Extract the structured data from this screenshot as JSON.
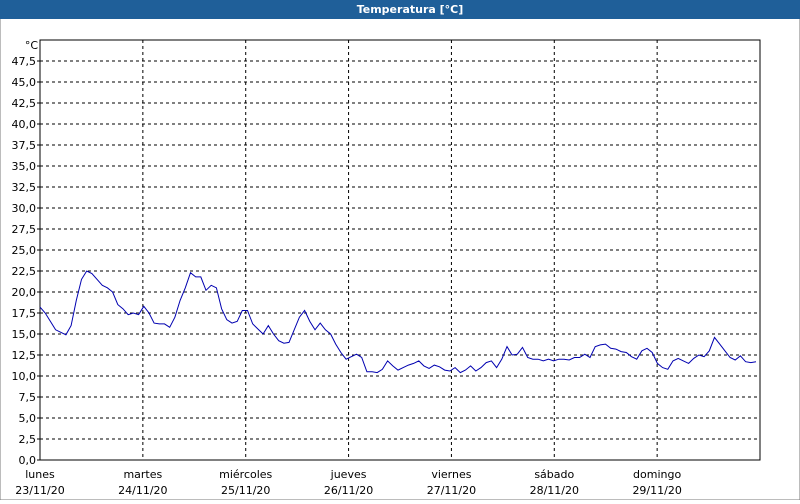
{
  "chart_data": {
    "type": "line",
    "title": "Temperatura [°C]",
    "unit": "°C",
    "color": "#0000b0",
    "grid": true,
    "ylim": [
      0,
      50
    ],
    "yticks": [
      {
        "value": 0,
        "label": "0,0"
      },
      {
        "value": 2.5,
        "label": "2,5"
      },
      {
        "value": 5,
        "label": "5,0"
      },
      {
        "value": 7.5,
        "label": "7,5"
      },
      {
        "value": 10,
        "label": "10,0"
      },
      {
        "value": 12.5,
        "label": "12,5"
      },
      {
        "value": 15,
        "label": "15,0"
      },
      {
        "value": 17.5,
        "label": "17,5"
      },
      {
        "value": 20,
        "label": "20,0"
      },
      {
        "value": 22.5,
        "label": "22,5"
      },
      {
        "value": 25,
        "label": "25,0"
      },
      {
        "value": 27.5,
        "label": "27,5"
      },
      {
        "value": 30,
        "label": "30,0"
      },
      {
        "value": 32.5,
        "label": "32,5"
      },
      {
        "value": 35,
        "label": "35,0"
      },
      {
        "value": 37.5,
        "label": "37,5"
      },
      {
        "value": 40,
        "label": "40,0"
      },
      {
        "value": 42.5,
        "label": "42,5"
      },
      {
        "value": 45,
        "label": "45,0"
      },
      {
        "value": 47.5,
        "label": "47,5"
      }
    ],
    "xticks": [
      {
        "label": "lunes",
        "date": "23/11/20"
      },
      {
        "label": "martes",
        "date": "24/11/20"
      },
      {
        "label": "miércoles",
        "date": "25/11/20"
      },
      {
        "label": "jueves",
        "date": "26/11/20"
      },
      {
        "label": "viernes",
        "date": "27/11/20"
      },
      {
        "label": "sábado",
        "date": "28/11/20"
      },
      {
        "label": "domingo",
        "date": "29/11/20"
      }
    ],
    "values": [
      18.2,
      17.5,
      16.5,
      15.5,
      15.2,
      14.9,
      16,
      19,
      21.5,
      22.5,
      22.2,
      21.5,
      20.8,
      20.5,
      20,
      18.5,
      18,
      17.3,
      17.5,
      17.3,
      18.3,
      17.5,
      16.3,
      16.2,
      16.2,
      15.8,
      17,
      19,
      20.5,
      22.3,
      21.8,
      21.8,
      20.2,
      20.8,
      20.5,
      18,
      16.7,
      16.3,
      16.5,
      17.8,
      17.8,
      16.2,
      15.6,
      15,
      16,
      15,
      14.2,
      13.9,
      14,
      15.5,
      17,
      17.8,
      16.5,
      15.5,
      16.3,
      15.5,
      15,
      13.8,
      12.8,
      12,
      12.3,
      12.6,
      12.2,
      10.5,
      10.5,
      10.4,
      10.8,
      11.8,
      11.2,
      10.7,
      11,
      11.3,
      11.5,
      11.8,
      11.2,
      10.9,
      11.3,
      11.1,
      10.7,
      10.6,
      11,
      10.4,
      10.7,
      11.2,
      10.6,
      11,
      11.6,
      11.8,
      11,
      12,
      13.5,
      12.5,
      12.6,
      13.4,
      12.2,
      12,
      12,
      11.8,
      12,
      11.8,
      12,
      12,
      11.9,
      12.2,
      12.2,
      12.6,
      12.2,
      13.5,
      13.7,
      13.8,
      13.3,
      13.2,
      12.9,
      12.8,
      12.3,
      12,
      13,
      13.3,
      12.8,
      11.5,
      11,
      10.8,
      11.8,
      12.1,
      11.8,
      11.5,
      12.1,
      12.5,
      12.3,
      13,
      14.6,
      13.8,
      13,
      12.2,
      11.9,
      12.4,
      11.7,
      11.6,
      11.7
    ]
  }
}
